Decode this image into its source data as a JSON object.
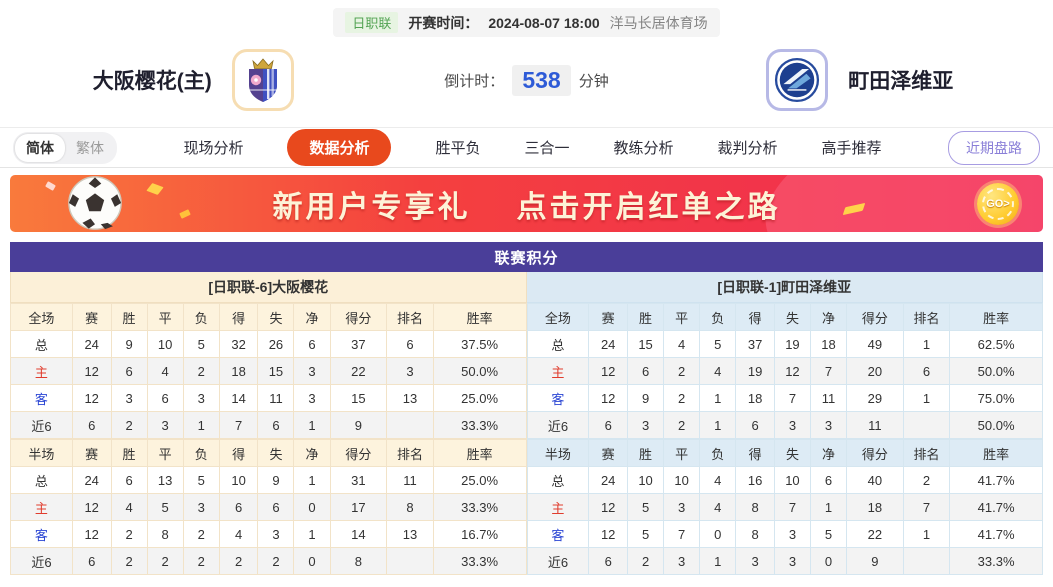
{
  "theme": {
    "title_bar_bg": "#4a3e99",
    "active_tab_bg": "#e8491d",
    "home_panel_bg": "#fcf0d8",
    "away_panel_bg": "#dbe9f3",
    "home_label_red": "#e03c2d",
    "away_label_blue": "#2b46d4",
    "countdown_blue": "#2e5bd7",
    "league_tag_green": "#53a353",
    "banner_text_cream": "#fdf3d7",
    "recent_button_purple": "#8a7fd8"
  },
  "top_bar": {
    "league_tag": "日职联",
    "kickoff_label": "开赛时间：",
    "kickoff_time": "2024-08-07 18:00",
    "venue": "洋马长居体育场"
  },
  "match": {
    "home_name": "大阪樱花(主)",
    "away_name": "町田泽维亚",
    "home_logo": "cerezo-osaka-crest",
    "away_logo": "machida-zelvia-badge",
    "countdown_label": "倒计时：",
    "countdown_value": "538",
    "countdown_unit": "分钟"
  },
  "nav": {
    "lang": {
      "simplified": "简体",
      "traditional": "繁体"
    },
    "tabs": [
      {
        "label": "现场分析",
        "active": false
      },
      {
        "label": "数据分析",
        "active": true
      },
      {
        "label": "胜平负",
        "active": false
      },
      {
        "label": "三合一",
        "active": false
      },
      {
        "label": "教练分析",
        "active": false
      },
      {
        "label": "裁判分析",
        "active": false
      },
      {
        "label": "高手推荐",
        "active": false
      }
    ],
    "recent_trend_button": "近期盘路"
  },
  "banner": {
    "headline_left": "新用户专享礼",
    "headline_right": "点击开启红单之路",
    "go_label": "GO>"
  },
  "standings": {
    "title": "联赛积分",
    "home": {
      "team_header": "[日职联-6]大阪樱花",
      "full": {
        "scope_label": "全场",
        "columns": [
          "赛",
          "胜",
          "平",
          "负",
          "得",
          "失",
          "净",
          "得分",
          "排名",
          "胜率"
        ],
        "rows": [
          {
            "label": "总",
            "type": "total",
            "values": [
              "24",
              "9",
              "10",
              "5",
              "32",
              "26",
              "6",
              "37",
              "6",
              "37.5%"
            ]
          },
          {
            "label": "主",
            "type": "home",
            "values": [
              "12",
              "6",
              "4",
              "2",
              "18",
              "15",
              "3",
              "22",
              "3",
              "50.0%"
            ]
          },
          {
            "label": "客",
            "type": "away",
            "values": [
              "12",
              "3",
              "6",
              "3",
              "14",
              "11",
              "3",
              "15",
              "13",
              "25.0%"
            ]
          },
          {
            "label": "近6",
            "type": "recent",
            "values": [
              "6",
              "2",
              "3",
              "1",
              "7",
              "6",
              "1",
              "9",
              "",
              "33.3%"
            ]
          }
        ]
      },
      "half": {
        "scope_label": "半场",
        "columns": [
          "赛",
          "胜",
          "平",
          "负",
          "得",
          "失",
          "净",
          "得分",
          "排名",
          "胜率"
        ],
        "rows": [
          {
            "label": "总",
            "type": "total",
            "values": [
              "24",
              "6",
              "13",
              "5",
              "10",
              "9",
              "1",
              "31",
              "11",
              "25.0%"
            ]
          },
          {
            "label": "主",
            "type": "home",
            "values": [
              "12",
              "4",
              "5",
              "3",
              "6",
              "6",
              "0",
              "17",
              "8",
              "33.3%"
            ]
          },
          {
            "label": "客",
            "type": "away",
            "values": [
              "12",
              "2",
              "8",
              "2",
              "4",
              "3",
              "1",
              "14",
              "13",
              "16.7%"
            ]
          },
          {
            "label": "近6",
            "type": "recent",
            "values": [
              "6",
              "2",
              "2",
              "2",
              "2",
              "2",
              "0",
              "8",
              "",
              "33.3%"
            ]
          }
        ]
      }
    },
    "away": {
      "team_header": "[日职联-1]町田泽维亚",
      "full": {
        "scope_label": "全场",
        "columns": [
          "赛",
          "胜",
          "平",
          "负",
          "得",
          "失",
          "净",
          "得分",
          "排名",
          "胜率"
        ],
        "rows": [
          {
            "label": "总",
            "type": "total",
            "values": [
              "24",
              "15",
              "4",
              "5",
              "37",
              "19",
              "18",
              "49",
              "1",
              "62.5%"
            ]
          },
          {
            "label": "主",
            "type": "home",
            "values": [
              "12",
              "6",
              "2",
              "4",
              "19",
              "12",
              "7",
              "20",
              "6",
              "50.0%"
            ]
          },
          {
            "label": "客",
            "type": "away",
            "values": [
              "12",
              "9",
              "2",
              "1",
              "18",
              "7",
              "11",
              "29",
              "1",
              "75.0%"
            ]
          },
          {
            "label": "近6",
            "type": "recent",
            "values": [
              "6",
              "3",
              "2",
              "1",
              "6",
              "3",
              "3",
              "11",
              "",
              "50.0%"
            ]
          }
        ]
      },
      "half": {
        "scope_label": "半场",
        "columns": [
          "赛",
          "胜",
          "平",
          "负",
          "得",
          "失",
          "净",
          "得分",
          "排名",
          "胜率"
        ],
        "rows": [
          {
            "label": "总",
            "type": "total",
            "values": [
              "24",
              "10",
              "10",
              "4",
              "16",
              "10",
              "6",
              "40",
              "2",
              "41.7%"
            ]
          },
          {
            "label": "主",
            "type": "home",
            "values": [
              "12",
              "5",
              "3",
              "4",
              "8",
              "7",
              "1",
              "18",
              "7",
              "41.7%"
            ]
          },
          {
            "label": "客",
            "type": "away",
            "values": [
              "12",
              "5",
              "7",
              "0",
              "8",
              "3",
              "5",
              "22",
              "1",
              "41.7%"
            ]
          },
          {
            "label": "近6",
            "type": "recent",
            "values": [
              "6",
              "2",
              "3",
              "1",
              "3",
              "3",
              "0",
              "9",
              "",
              "33.3%"
            ]
          }
        ]
      }
    }
  }
}
